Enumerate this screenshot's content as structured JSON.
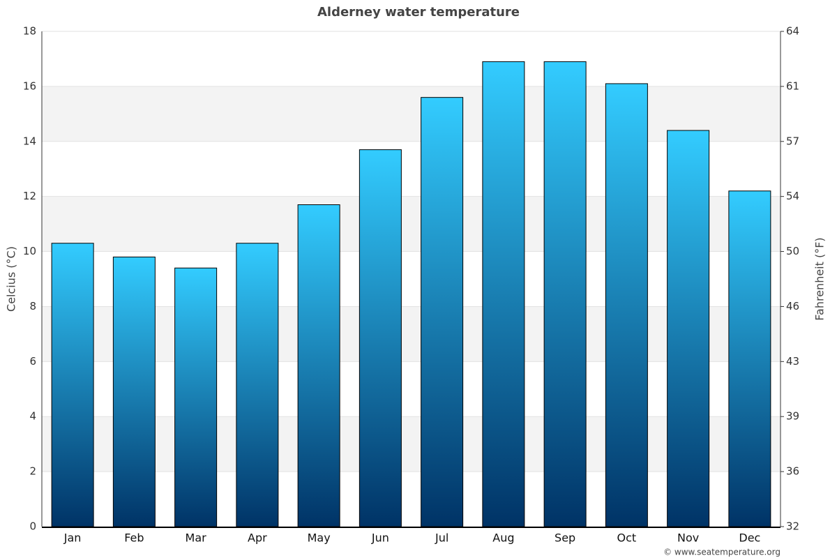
{
  "chart_data": {
    "type": "bar",
    "title": "Alderney water temperature",
    "categories": [
      "Jan",
      "Feb",
      "Mar",
      "Apr",
      "May",
      "Jun",
      "Jul",
      "Aug",
      "Sep",
      "Oct",
      "Nov",
      "Dec"
    ],
    "values": [
      10.3,
      9.8,
      9.4,
      10.3,
      11.7,
      13.7,
      15.6,
      16.9,
      16.9,
      16.1,
      14.4,
      12.2
    ],
    "gradient": [
      "#33ccff",
      "#003366"
    ],
    "ylabel": "Celcius (°C)",
    "y2label": "Fahrenheit (°F)",
    "ylim": [
      0,
      18
    ],
    "yticks": [
      0,
      2,
      4,
      6,
      8,
      10,
      12,
      14,
      16,
      18
    ],
    "y2lim": [
      32,
      64.4
    ],
    "y2ticks": [
      32,
      {
        "value": 35.6,
        "label": "36"
      },
      {
        "value": 39.2,
        "label": "39"
      },
      {
        "value": 42.8,
        "label": "43"
      },
      {
        "value": 46.4,
        "label": "46"
      },
      50,
      {
        "value": 53.6,
        "label": "54"
      },
      {
        "value": 57.2,
        "label": "57"
      },
      {
        "value": 60.8,
        "label": "61"
      },
      {
        "value": 64.4,
        "label": "64"
      }
    ],
    "grid": true,
    "banded": true,
    "credit": "© www.seatemperature.org"
  }
}
